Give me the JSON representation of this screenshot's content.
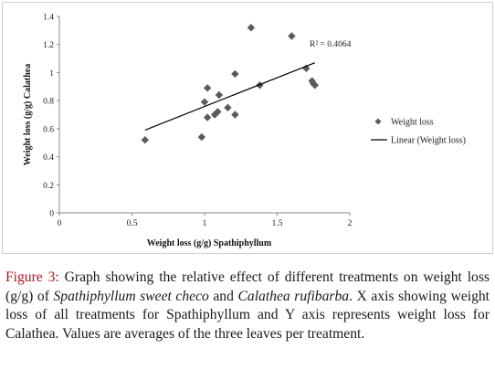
{
  "chart_data": {
    "type": "scatter",
    "xlabel": "Weight loss (g/g) Spathiphyllum",
    "ylabel": "Weight loss (g/g) Calathea",
    "xlim": [
      0,
      2
    ],
    "ylim": [
      0,
      1.4
    ],
    "x_ticks": [
      "0",
      "0.5",
      "1",
      "1.5",
      "2"
    ],
    "y_ticks": [
      "0",
      "0.2",
      "0.4",
      "0.6",
      "0.8",
      "1",
      "1.2",
      "1.4"
    ],
    "series": [
      {
        "name": "Weight loss",
        "marker": "diamond",
        "color": "#5a5a5a",
        "points": [
          [
            0.59,
            0.52
          ],
          [
            0.98,
            0.54
          ],
          [
            1.0,
            0.79
          ],
          [
            1.02,
            0.89
          ],
          [
            1.02,
            0.68
          ],
          [
            1.07,
            0.7
          ],
          [
            1.09,
            0.72
          ],
          [
            1.1,
            0.84
          ],
          [
            1.16,
            0.75
          ],
          [
            1.21,
            0.99
          ],
          [
            1.21,
            0.7
          ],
          [
            1.32,
            1.32
          ],
          [
            1.38,
            0.91
          ],
          [
            1.6,
            1.26
          ],
          [
            1.7,
            1.03
          ],
          [
            1.74,
            0.94
          ],
          [
            1.75,
            0.92
          ],
          [
            1.76,
            0.91
          ]
        ]
      }
    ],
    "trendline": {
      "name": "Linear (Weight loss)",
      "type": "linear",
      "from": [
        0.59,
        0.59
      ],
      "to": [
        1.76,
        1.07
      ],
      "color": "#000000",
      "r2_label": "R² = 0.4064"
    },
    "legend_position": "right"
  },
  "caption": {
    "figure_label": "Figure 3:",
    "part1": " Graph showing the relative effect of different treatments on weight loss (g/g) of ",
    "species1": "Spathiphyllum sweet checo",
    "part2": " and ",
    "species2": "Calathea rufibarba",
    "part3": ". X axis showing weight loss of all treatments for Spathiphyllum and Y axis represents weight loss for Calathea. Values are averages of the three leaves per treatment."
  }
}
